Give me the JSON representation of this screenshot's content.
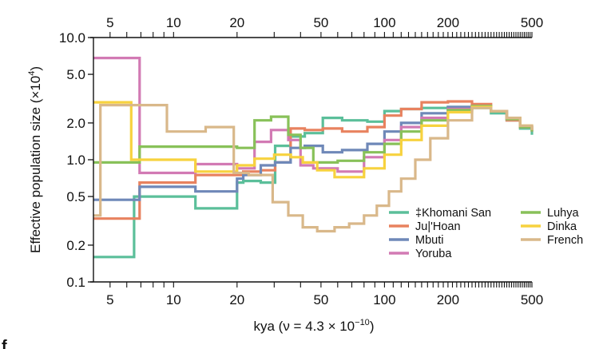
{
  "chart_data": {
    "type": "line",
    "subtype": "step",
    "title": "",
    "xlabel": "kya (ν = 4.3 × 10",
    "xlabel_exp": "−10",
    "xlabel_close": ")",
    "ylabel": "Effective population size (×10",
    "ylabel_exp": "4",
    "ylabel_close": ")",
    "xscale": "log",
    "yscale": "log",
    "xlim": [
      4.17,
      500
    ],
    "ylim": [
      0.1,
      10.0
    ],
    "x_ticks": [
      5,
      10,
      20,
      50,
      100,
      200,
      500
    ],
    "x_tick_labels": [
      "5",
      "10",
      "20",
      "50",
      "100",
      "200",
      "500"
    ],
    "y_ticks": [
      0.1,
      0.2,
      0.5,
      1.0,
      2.0,
      5.0,
      10.0
    ],
    "y_tick_labels": [
      "0.1",
      "0.2",
      "0.5",
      "1.0",
      "2.0",
      "5.0",
      "10.0"
    ],
    "top_axis_mirrored": true,
    "grid": false,
    "legend_position": "bottom-right",
    "panel_letter": "f",
    "series": [
      {
        "name": "‡Khomani San",
        "color": "#5bbf9a",
        "t": [
          4.17,
          6.5,
          12.7,
          20,
          21.4,
          25.9,
          30.3,
          35.9,
          41.9,
          51,
          63,
          83,
          100,
          120,
          150,
          200,
          260,
          320,
          380,
          440,
          500
        ],
        "ne": [
          0.16,
          0.5,
          0.4,
          0.65,
          0.67,
          0.65,
          1.3,
          1.55,
          1.65,
          2.2,
          2.1,
          2.05,
          2.5,
          2.6,
          2.65,
          2.7,
          2.65,
          2.4,
          2.1,
          1.8,
          1.6
        ]
      },
      {
        "name": "Ju|'Hoan",
        "color": "#e8825f",
        "t": [
          4.17,
          6.9,
          12.7,
          20,
          21.4,
          25.9,
          30.3,
          35.9,
          41.9,
          51,
          63,
          83,
          100,
          120,
          150,
          200,
          260,
          320,
          380,
          440,
          500
        ],
        "ne": [
          0.33,
          0.65,
          0.75,
          0.75,
          0.8,
          0.82,
          0.95,
          1.8,
          1.75,
          1.8,
          1.7,
          1.85,
          2.3,
          2.6,
          2.95,
          3.0,
          2.85,
          2.5,
          2.1,
          1.85,
          1.7
        ]
      },
      {
        "name": "Mbuti",
        "color": "#6f88b8",
        "t": [
          4.17,
          6.9,
          12.7,
          20,
          21.4,
          25.9,
          30.3,
          35.9,
          41.9,
          51,
          63,
          83,
          100,
          120,
          150,
          200,
          260,
          320,
          380,
          440,
          500
        ],
        "ne": [
          0.47,
          0.6,
          0.55,
          0.7,
          0.75,
          0.9,
          0.95,
          1.25,
          1.3,
          1.15,
          1.2,
          1.35,
          1.7,
          2.0,
          2.4,
          2.7,
          2.75,
          2.5,
          2.15,
          1.85,
          1.7
        ]
      },
      {
        "name": "Yoruba",
        "color": "#d27ab4",
        "t": [
          4.17,
          6.9,
          12.7,
          20,
          24.2,
          29,
          35,
          40,
          46,
          60,
          80,
          100,
          120,
          150,
          200,
          260,
          320,
          380,
          440,
          500
        ],
        "ne": [
          6.8,
          0.78,
          0.92,
          0.85,
          1.4,
          1.75,
          1.45,
          0.9,
          0.85,
          0.8,
          1.05,
          1.45,
          1.85,
          2.2,
          2.6,
          2.75,
          2.5,
          2.15,
          1.85,
          1.7
        ]
      },
      {
        "name": "Luhya",
        "color": "#88c159",
        "t": [
          4.17,
          6.9,
          20,
          24.2,
          29,
          35,
          40,
          46,
          60,
          80,
          100,
          120,
          150,
          200,
          260,
          320,
          380,
          440,
          500
        ],
        "ne": [
          0.95,
          1.28,
          1.25,
          2.1,
          2.25,
          1.6,
          1.25,
          0.95,
          0.98,
          1.15,
          1.35,
          1.7,
          2.1,
          2.55,
          2.75,
          2.5,
          2.15,
          1.85,
          1.7
        ]
      },
      {
        "name": "Dinka",
        "color": "#f7d23e",
        "t": [
          4.17,
          6.3,
          12.7,
          20,
          24.2,
          30,
          36,
          41,
          48,
          58,
          80,
          100,
          120,
          150,
          200,
          260,
          320,
          380,
          440,
          500
        ],
        "ne": [
          2.95,
          1.0,
          0.8,
          0.9,
          1.02,
          1.1,
          1.05,
          0.95,
          0.82,
          0.72,
          0.85,
          1.1,
          1.45,
          1.9,
          2.45,
          2.7,
          2.5,
          2.2,
          1.9,
          1.75
        ]
      },
      {
        "name": "French",
        "color": "#d9b88a",
        "t": [
          4.17,
          4.5,
          9.3,
          14.2,
          19.3,
          22.7,
          29.5,
          35,
          41,
          48,
          58,
          68,
          80,
          92,
          105,
          120,
          140,
          165,
          200,
          260,
          320,
          380,
          440,
          500
        ],
        "ne": [
          0.35,
          2.8,
          1.7,
          1.85,
          0.78,
          0.75,
          0.45,
          0.35,
          0.28,
          0.26,
          0.28,
          0.3,
          0.35,
          0.42,
          0.55,
          0.7,
          1.0,
          1.5,
          2.1,
          2.65,
          2.5,
          2.2,
          1.9,
          1.75
        ]
      }
    ]
  }
}
